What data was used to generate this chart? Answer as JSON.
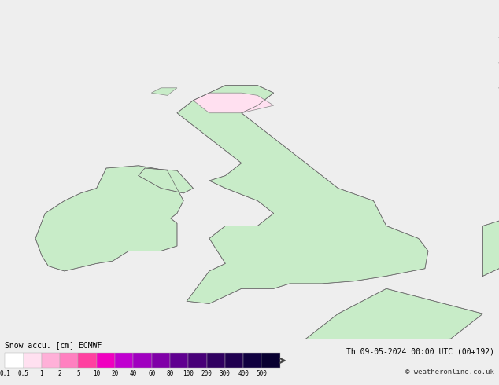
{
  "title_left": "Snow accu. [cm] ECMWF",
  "title_right": "Th 09-05-2024 00:00 UTC (00+192)",
  "credit": "© weatheronline.co.uk",
  "colorbar_levels": [
    0.1,
    0.5,
    1,
    2,
    5,
    10,
    20,
    40,
    60,
    80,
    100,
    200,
    300,
    400,
    500
  ],
  "colorbar_colors": [
    "#ffffff",
    "#ffe0f0",
    "#ffb0d8",
    "#ff80c0",
    "#ff40a0",
    "#f000c0",
    "#c000d0",
    "#a000c0",
    "#8000a8",
    "#600090",
    "#480078",
    "#300060",
    "#200050",
    "#100040",
    "#080030"
  ],
  "background_color": "#eeeeee",
  "map_background": "#e8e8e8",
  "sea_color": "#e0e0e0",
  "land_color_low": "#c8ecc8",
  "land_color_high": "#b0d8b0",
  "figsize": [
    6.34,
    4.9
  ],
  "dpi": 100
}
